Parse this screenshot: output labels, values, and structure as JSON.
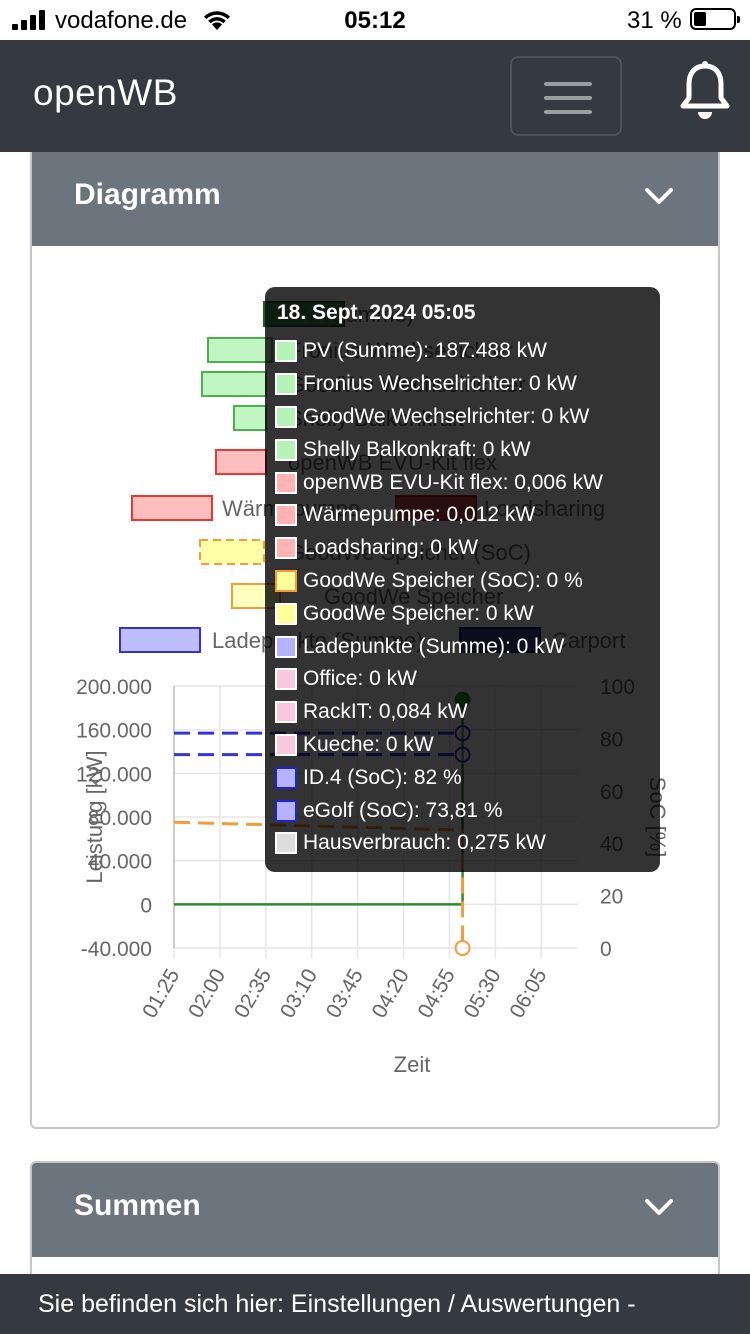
{
  "status_bar": {
    "carrier": "vodafone.de",
    "time": "05:12",
    "battery_percent": "31 %",
    "battery_level": 0.31
  },
  "navbar": {
    "brand": "openWB",
    "menu_icon": "hamburger-icon",
    "notification_icon": "bell-icon"
  },
  "cards": {
    "diagramm": {
      "title": "Diagramm",
      "icon": "chevron-down-icon"
    },
    "summen": {
      "title": "Summen",
      "icon": "chevron-down-icon"
    }
  },
  "legend": [
    {
      "label": "PV (Summe)",
      "fill": "#2e7d32",
      "border": "#1b5e20",
      "dashed": false
    },
    {
      "label": "Fronius Wechselrichter",
      "fill": "#b6f3b6",
      "border": "#4caf50",
      "dashed": false
    },
    {
      "label": "GoodWe Wechselrichter",
      "fill": "#b6f3b6",
      "border": "#4caf50",
      "dashed": false
    },
    {
      "label": "Shelly Balkonkraft",
      "fill": "#b6f3b6",
      "border": "#4caf50",
      "dashed": false
    },
    {
      "label": "openWB EVU-Kit flex",
      "fill": "#ffb3b3",
      "border": "#e53935",
      "dashed": false
    },
    {
      "label": "Wärmepumpe",
      "fill": "#ffb3b3",
      "border": "#e53935",
      "dashed": false
    },
    {
      "label": "Loadsharing",
      "fill": "#c62828",
      "border": "#b71c1c",
      "dashed": false
    },
    {
      "label": "GoodWe Speicher (SoC)",
      "fill": "#ffff99",
      "border": "#f39c3c",
      "dashed": true
    },
    {
      "label": "GoodWe Speicher",
      "fill": "#ffffb3",
      "border": "#f39c3c",
      "dashed": false
    },
    {
      "label": "Ladepunkte (Summe)",
      "fill": "#b3b3ff",
      "border": "#3333cc",
      "dashed": false
    },
    {
      "label": "Carport",
      "fill": "#1a237e",
      "border": "#0d1250",
      "dashed": false
    }
  ],
  "chart_data": {
    "type": "line",
    "xlabel": "Zeit",
    "ylabel": "Leistung [kW]",
    "y2label": "SoC [%]",
    "x_ticks": [
      "01:25",
      "02:00",
      "02:35",
      "03:10",
      "03:45",
      "04:20",
      "04:55",
      "05:30",
      "06:05"
    ],
    "y_ticks": [
      "200.000",
      "160.000",
      "120.000",
      "80.000",
      "40.000",
      "0",
      "-40.000"
    ],
    "y2_ticks": [
      "100",
      "80",
      "60",
      "40",
      "20",
      "0"
    ],
    "ylim": [
      -40000,
      200000
    ],
    "y2lim": [
      0,
      100
    ],
    "series": [
      {
        "name": "PV (Summe)",
        "axis": "y",
        "color": "#2e8b2e",
        "dashed": false,
        "points": [
          [
            "01:25",
            0
          ],
          [
            "05:05",
            0
          ],
          [
            "05:05",
            187488
          ]
        ]
      },
      {
        "name": "GoodWe Speicher (SoC)",
        "axis": "y2",
        "color": "#f39c3c",
        "dashed": true,
        "points": [
          [
            "01:25",
            48
          ],
          [
            "05:05",
            45
          ],
          [
            "05:05",
            0
          ]
        ]
      },
      {
        "name": "ID.4 (SoC)",
        "axis": "y2",
        "color": "#3333dd",
        "dashed": true,
        "points": [
          [
            "01:25",
            82
          ],
          [
            "05:05",
            82
          ]
        ]
      },
      {
        "name": "eGolf (SoC)",
        "axis": "y2",
        "color": "#3333dd",
        "dashed": true,
        "points": [
          [
            "01:25",
            73.81
          ],
          [
            "05:05",
            73.81
          ]
        ]
      }
    ]
  },
  "tooltip": {
    "title": "18. Sept. 2024 05:05",
    "items": [
      {
        "text": "PV (Summe): 187.488 kW",
        "color": "#b6f3b6"
      },
      {
        "text": "Fronius Wechselrichter: 0 kW",
        "color": "#b6f3b6"
      },
      {
        "text": "GoodWe Wechselrichter: 0 kW",
        "color": "#b6f3b6"
      },
      {
        "text": "Shelly Balkonkraft: 0 kW",
        "color": "#b6f3b6"
      },
      {
        "text": "openWB EVU-Kit flex: 0,006 kW",
        "color": "#ffb3b3"
      },
      {
        "text": "Wärmepumpe: 0,012 kW",
        "color": "#ffb3b3"
      },
      {
        "text": "Loadsharing: 0 kW",
        "color": "#ffb3b3"
      },
      {
        "text": "GoodWe Speicher (SoC): 0 %",
        "color": "#ffff99",
        "border": "#f39c3c"
      },
      {
        "text": "GoodWe Speicher: 0 kW",
        "color": "#ffff99"
      },
      {
        "text": "Ladepunkte (Summe): 0 kW",
        "color": "#b3b3ff"
      },
      {
        "text": "Office: 0 kW",
        "color": "#f8c8dc"
      },
      {
        "text": "RackIT: 0,084 kW",
        "color": "#f8c8dc"
      },
      {
        "text": "Kueche: 0 kW",
        "color": "#f8c8dc"
      },
      {
        "text": "ID.4 (SoC): 82 %",
        "color": "#b3b3ff",
        "border": "#2222cc"
      },
      {
        "text": "eGolf (SoC): 73,81 %",
        "color": "#b3b3ff",
        "border": "#2222cc"
      },
      {
        "text": "Hausverbrauch: 0,275 kW",
        "color": "#dddddd"
      }
    ]
  },
  "footer": {
    "text": "Sie befinden sich hier: Einstellungen / Auswertungen -"
  }
}
